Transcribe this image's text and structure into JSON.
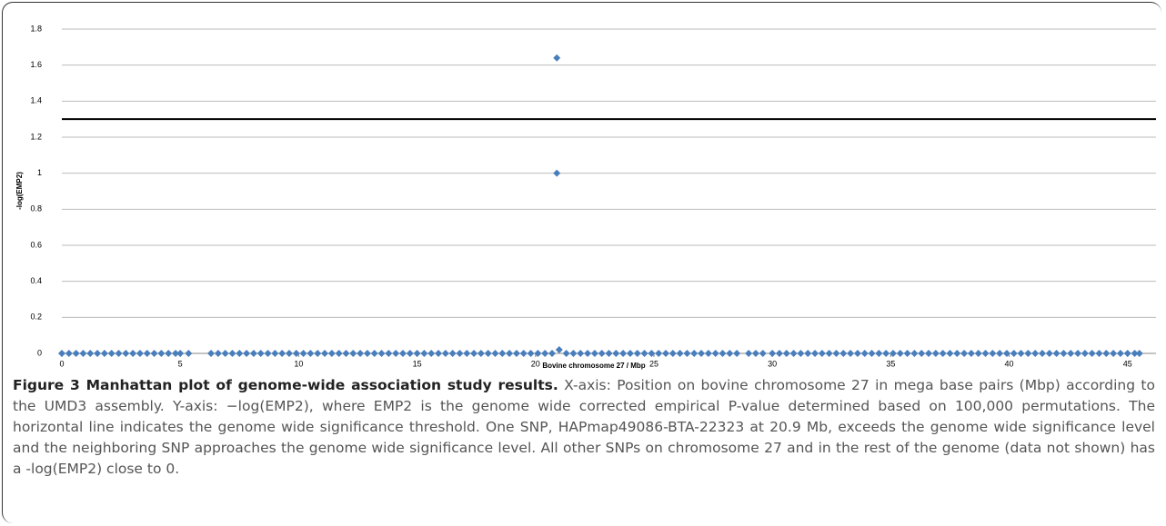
{
  "chart_data": {
    "type": "scatter",
    "xlabel": "Bovine chromosome 27 / Mbp",
    "ylabel": "-log(EMP2)",
    "xlim": [
      0,
      46.2
    ],
    "ylim": [
      0,
      1.8
    ],
    "xticks": [
      0,
      5,
      10,
      15,
      20,
      25,
      30,
      35,
      40,
      45
    ],
    "yticks": [
      0,
      0.2,
      0.4,
      0.6,
      0.8,
      1,
      1.2,
      1.4,
      1.6,
      1.8
    ],
    "grid": true,
    "color": "#4a7ebb",
    "threshold": 1.3,
    "x": [
      0,
      0.3,
      0.6,
      0.9,
      1.2,
      1.5,
      1.8,
      2.1,
      2.4,
      2.7,
      3,
      3.3,
      3.6,
      3.9,
      4.2,
      4.5,
      4.8,
      5,
      5.35,
      6.3,
      6.6,
      6.9,
      7.2,
      7.5,
      7.8,
      8.1,
      8.4,
      8.7,
      9,
      9.3,
      9.6,
      9.9,
      10.2,
      10.5,
      10.8,
      11.1,
      11.4,
      11.7,
      12,
      12.3,
      12.6,
      12.9,
      13.2,
      13.5,
      13.8,
      14.1,
      14.4,
      14.7,
      15,
      15.3,
      15.6,
      15.9,
      16.2,
      16.5,
      16.8,
      17.1,
      17.4,
      17.7,
      18,
      18.3,
      18.6,
      18.9,
      19.2,
      19.5,
      19.8,
      20.1,
      20.4,
      20.7,
      20.9,
      20.9,
      21,
      21.3,
      21.6,
      21.9,
      22.2,
      22.5,
      22.8,
      23.1,
      23.4,
      23.7,
      24,
      24.3,
      24.6,
      24.9,
      25.2,
      25.5,
      25.8,
      26.1,
      26.4,
      26.7,
      27,
      27.3,
      27.6,
      27.9,
      28.2,
      28.5,
      29,
      29.3,
      29.6,
      30,
      30.3,
      30.6,
      30.9,
      31.2,
      31.5,
      31.8,
      32.1,
      32.4,
      32.7,
      33,
      33.3,
      33.6,
      33.9,
      34.2,
      34.5,
      34.8,
      35.1,
      35.4,
      35.7,
      36,
      36.3,
      36.6,
      36.9,
      37.2,
      37.5,
      37.8,
      38.1,
      38.4,
      38.7,
      39,
      39.3,
      39.6,
      39.9,
      40.2,
      40.5,
      40.8,
      41.1,
      41.4,
      41.7,
      42,
      42.3,
      42.6,
      42.9,
      43.2,
      43.5,
      43.8,
      44.1,
      44.4,
      44.7,
      45,
      45.3,
      45.5
    ],
    "values": [
      0,
      0,
      0,
      0,
      0,
      0,
      0,
      0,
      0,
      0,
      0,
      0,
      0,
      0,
      0,
      0,
      0,
      0,
      0,
      0,
      0,
      0,
      0,
      0,
      0,
      0,
      0,
      0,
      0,
      0,
      0,
      0,
      0,
      0,
      0,
      0,
      0,
      0,
      0,
      0,
      0,
      0,
      0,
      0,
      0,
      0,
      0,
      0,
      0,
      0,
      0,
      0,
      0,
      0,
      0,
      0,
      0,
      0,
      0,
      0,
      0,
      0,
      0,
      0,
      0,
      0,
      0,
      0,
      1.64,
      1,
      0.02,
      0,
      0,
      0,
      0,
      0,
      0,
      0,
      0,
      0,
      0,
      0,
      0,
      0,
      0,
      0,
      0,
      0,
      0,
      0,
      0,
      0,
      0,
      0,
      0,
      0,
      0,
      0,
      0,
      0,
      0,
      0,
      0,
      0,
      0,
      0,
      0,
      0,
      0,
      0,
      0,
      0,
      0,
      0,
      0,
      0,
      0,
      0,
      0,
      0,
      0,
      0,
      0,
      0,
      0,
      0,
      0,
      0,
      0,
      0,
      0,
      0,
      0,
      0,
      0,
      0,
      0,
      0,
      0,
      0,
      0,
      0,
      0,
      0,
      0,
      0,
      0,
      0,
      0,
      0,
      0,
      0
    ]
  },
  "caption": {
    "label": "Figure 3 Manhattan plot of genome-wide association study results.",
    "text": "X-axis: Position on bovine chromosome 27 in mega base pairs (Mbp) according to the UMD3 assembly. Y-axis: −log(EMP2), where EMP2 is the genome wide corrected empirical P-value determined based on 100,000 permutations. The horizontal line indicates the genome wide significance threshold. One SNP, HAPmap49086-BTA-22323 at 20.9 Mb, exceeds the genome wide significance level and the neighboring SNP approaches the genome wide significance level. All other SNPs on chromosome 27 and in the rest of the genome (data not shown) has a -log(EMP2) close to 0."
  }
}
